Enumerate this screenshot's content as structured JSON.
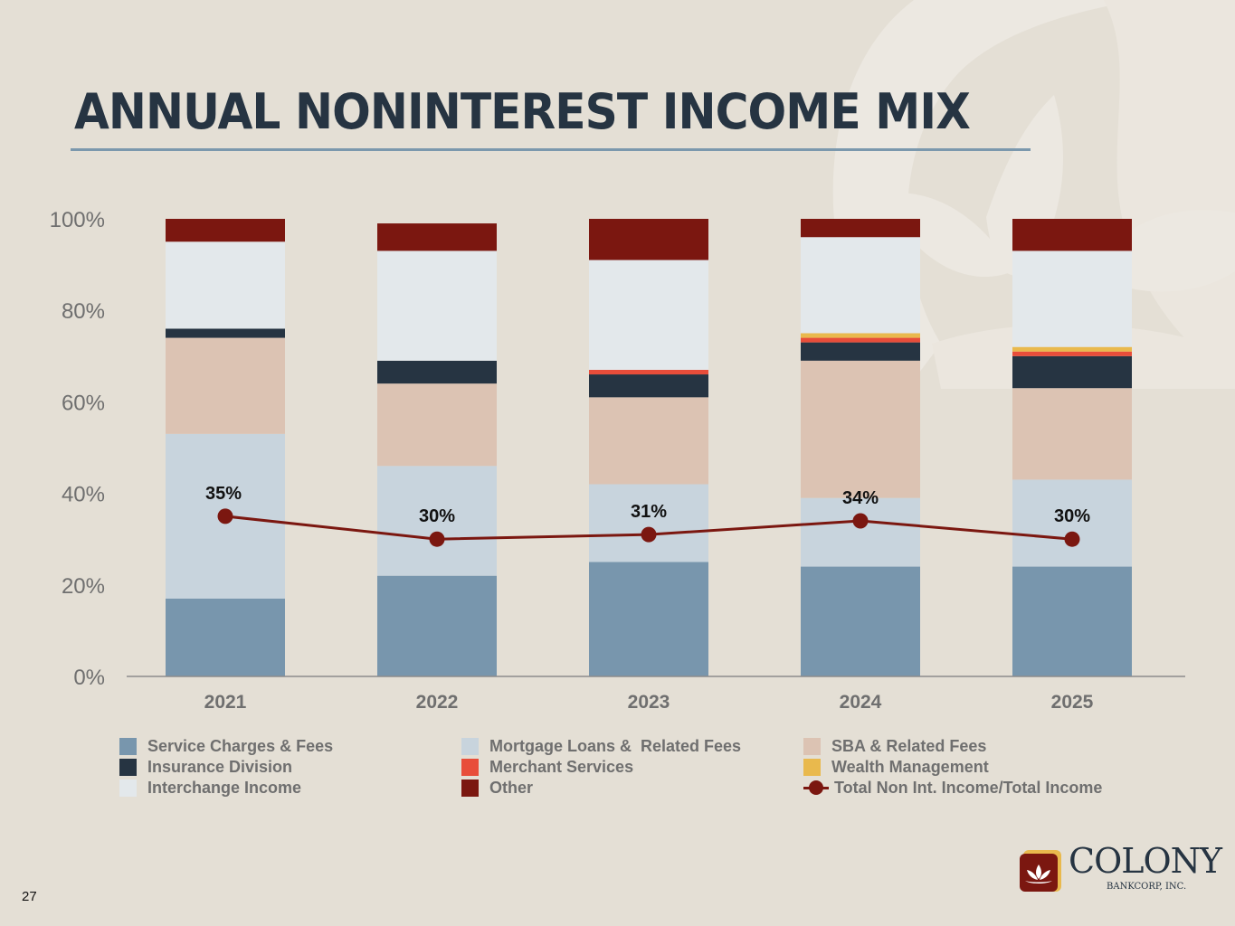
{
  "page": {
    "title": "ANNUAL NONINTEREST INCOME MIX",
    "page_number": "27"
  },
  "logo": {
    "name": "COLONY",
    "subtitle": "BANKCORP, INC."
  },
  "colors": {
    "background": "#e4dfd5",
    "title": "#263442",
    "rule": "#7b98ad"
  },
  "chart_data": {
    "type": "bar",
    "stacked": true,
    "categories": [
      "2021",
      "2022",
      "2023",
      "2024",
      "2025"
    ],
    "ylim": [
      0,
      100
    ],
    "yticks": [
      "0%",
      "20%",
      "40%",
      "60%",
      "80%",
      "100%"
    ],
    "grid": false,
    "legend_position": "bottom",
    "series": [
      {
        "name": "Service Charges & Fees",
        "color": "#7896ad",
        "values": [
          17,
          22,
          25,
          24,
          24
        ]
      },
      {
        "name": "Mortgage Loans &  Related Fees",
        "color": "#c8d4dd",
        "values": [
          36,
          24,
          17,
          15,
          19
        ]
      },
      {
        "name": "SBA & Related Fees",
        "color": "#dcc3b3",
        "values": [
          21,
          18,
          19,
          30,
          20
        ]
      },
      {
        "name": "Insurance Division",
        "color": "#263442",
        "values": [
          2,
          5,
          5,
          4,
          7
        ]
      },
      {
        "name": "Merchant Services",
        "color": "#e84d3a",
        "values": [
          0,
          0,
          1,
          1,
          1
        ]
      },
      {
        "name": "Wealth Management",
        "color": "#e9b94d",
        "values": [
          0,
          0,
          0,
          1,
          1
        ]
      },
      {
        "name": "Interchange Income",
        "color": "#e3e8eb",
        "values": [
          19,
          24,
          24,
          21,
          21
        ]
      },
      {
        "name": "Other",
        "color": "#7b1710",
        "values": [
          5,
          6,
          9,
          4,
          7
        ]
      }
    ],
    "line_series": {
      "name": "Total Non Int. Income/Total Income",
      "color": "#7b1710",
      "values": [
        35,
        30,
        31,
        34,
        30
      ],
      "labels": [
        "35%",
        "30%",
        "31%",
        "34%",
        "30%"
      ]
    },
    "legend_order": [
      "Service Charges & Fees",
      "Mortgage Loans &  Related Fees",
      "SBA & Related Fees",
      "Insurance Division",
      "Merchant Services",
      "Wealth Management",
      "Interchange Income",
      "Other",
      "Total Non Int. Income/Total Income"
    ]
  }
}
